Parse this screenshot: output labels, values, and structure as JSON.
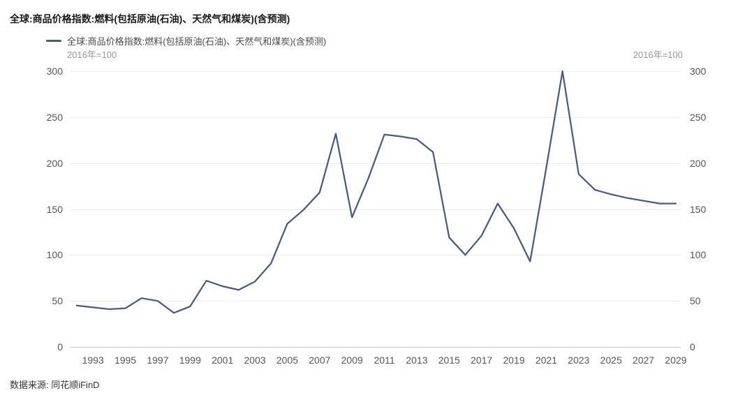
{
  "title": "全球:商品价格指数:燃料(包括原油(石油)、天然气和煤炭)(含预测)",
  "legend": {
    "label": "全球:商品价格指数:燃料(包括原油(石油)、天然气和煤炭)(含预测)"
  },
  "axis": {
    "unit_note": "2016年=100"
  },
  "source": "数据来源: 同花顺iFinD",
  "colors": {
    "line": "#4a5985",
    "grid": "#ededf0",
    "axis_line": "#c9c9cc"
  },
  "chart_data": {
    "type": "line",
    "title": "全球:商品价格指数:燃料(包括原油(石油)、天然气和煤炭)(含预测)",
    "subtitle": "2016年=100",
    "x": [
      1992,
      1993,
      1994,
      1995,
      1996,
      1997,
      1998,
      1999,
      2000,
      2001,
      2002,
      2003,
      2004,
      2005,
      2006,
      2007,
      2008,
      2009,
      2010,
      2011,
      2012,
      2013,
      2014,
      2015,
      2016,
      2017,
      2018,
      2019,
      2020,
      2021,
      2022,
      2023,
      2024,
      2025,
      2026,
      2027,
      2028,
      2029
    ],
    "series": [
      {
        "name": "全球:商品价格指数:燃料(包括原油(石油)、天然气和煤炭)(含预测)",
        "color": "#4a5985",
        "values": [
          45,
          43,
          41,
          42,
          53,
          50,
          37,
          44,
          72,
          66,
          62,
          71,
          91,
          134,
          149,
          168,
          232,
          141,
          183,
          231,
          229,
          226,
          212,
          119,
          100,
          121,
          156,
          129,
          93,
          195,
          300,
          188,
          171,
          166,
          162,
          159,
          156,
          156
        ]
      }
    ],
    "x_tick_labels": [
      "1993",
      "1995",
      "1997",
      "1999",
      "2001",
      "2003",
      "2005",
      "2007",
      "2009",
      "2011",
      "2013",
      "2015",
      "2017",
      "2019",
      "2021",
      "2023",
      "2025",
      "2027",
      "2029"
    ],
    "y_ticks": [
      0,
      50,
      100,
      150,
      200,
      250,
      300
    ],
    "ylim": [
      0,
      300
    ],
    "xlabel": "",
    "ylabel": "2016年=100",
    "grid": true,
    "legend_position": "top-left",
    "dual_y_axis": true
  }
}
